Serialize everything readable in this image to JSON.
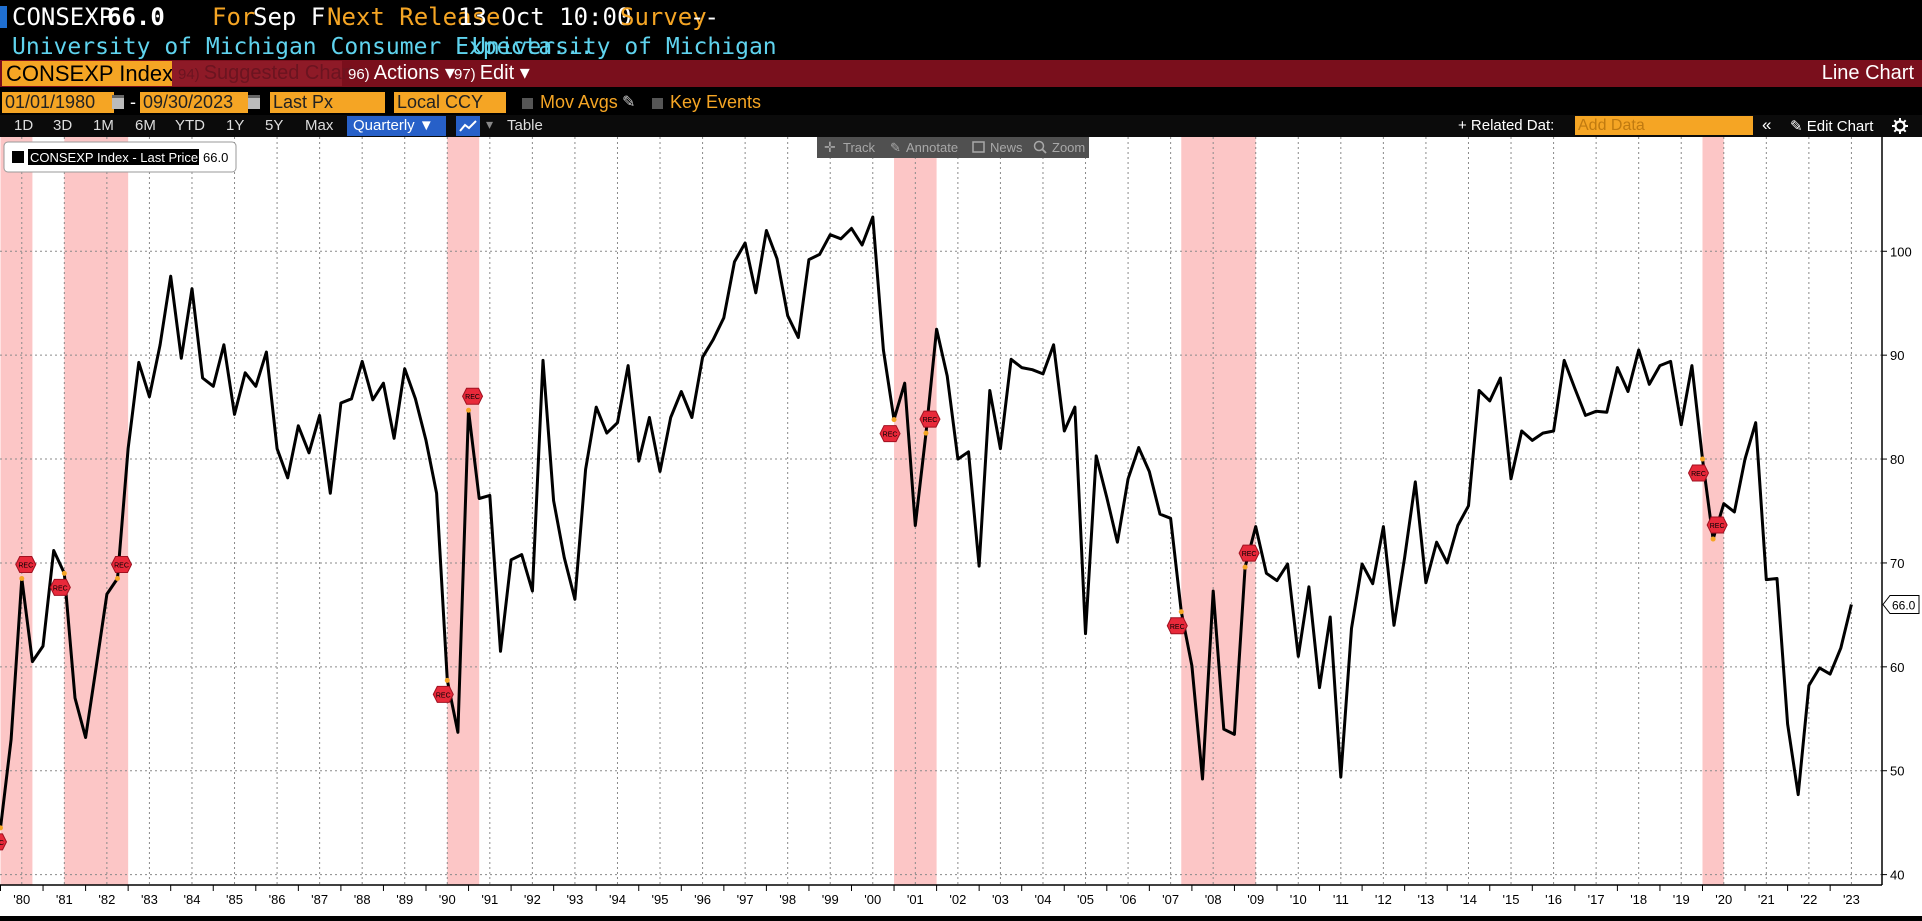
{
  "header": {
    "ticker": "CONSEXP",
    "value": "66.0",
    "for_label": "For",
    "for_value": "Sep F",
    "next_release_label": "Next Release",
    "next_release_value": "13 Oct 10:00",
    "survey_label": "Survey",
    "survey_value": "--",
    "description": "University of Michigan Consumer Expecta...",
    "source": "University of Michigan"
  },
  "menu": {
    "security": "CONSEXP Index",
    "suggested_num": "94)",
    "suggested": "Suggested Charts",
    "actions_num": "96)",
    "actions": "Actions ▾",
    "edit_num": "97)",
    "edit": "Edit ▾",
    "chart_type": "Line Chart"
  },
  "controls": {
    "start_date": "01/01/1980",
    "date_sep": "-",
    "end_date": "09/30/2023",
    "field": "Last Px",
    "currency": "Local CCY",
    "mov_avgs": "Mov Avgs",
    "key_events": "Key Events"
  },
  "toolbar": {
    "ranges": [
      "1D",
      "3D",
      "1M",
      "6M",
      "YTD",
      "1Y",
      "5Y",
      "Max"
    ],
    "frequency": "Quarterly ▼",
    "table": "Table",
    "related_data": "+ Related Dat:",
    "add_data_placeholder": "Add Data",
    "collapse": "«",
    "edit_chart": "✎ Edit Chart",
    "settings_icon": "gear-icon"
  },
  "chart_tools": [
    "Track",
    "Annotate",
    "News",
    "Zoom"
  ],
  "legend": {
    "label": "CONSEXP Index - Last Price",
    "value": "66.0"
  },
  "recession_label": "REC",
  "colors": {
    "accent": "#f5a524",
    "menu_bar": "#7a0f1c",
    "title_cyan": "#5fd3ee",
    "recession_shade": "#fcc6c6",
    "recession_marker": "#e8293a",
    "series": "#000000"
  },
  "chart_data": {
    "type": "line",
    "title": "",
    "xlabel": "",
    "ylabel": "",
    "frequency": "quarterly",
    "x_start": "1980 Q1",
    "x_end": "2023 Q3",
    "ylim": [
      39,
      111
    ],
    "yticks": [
      40,
      50,
      60,
      70,
      80,
      90,
      100
    ],
    "xtick_labels": [
      "'80",
      "'81",
      "'82",
      "'83",
      "'84",
      "'85",
      "'86",
      "'87",
      "'88",
      "'89",
      "'90",
      "'91",
      "'92",
      "'93",
      "'94",
      "'95",
      "'96",
      "'97",
      "'98",
      "'99",
      "'00",
      "'01",
      "'02",
      "'03",
      "'04",
      "'05",
      "'06",
      "'07",
      "'08",
      "'09",
      "'10",
      "'11",
      "'12",
      "'13",
      "'14",
      "'15",
      "'16",
      "'17",
      "'18",
      "'19",
      "'20",
      "'21",
      "'22",
      "'23"
    ],
    "grid": true,
    "last_value": 66.0,
    "recessions": [
      {
        "start": "1980 Q1",
        "end": "1980 Q3"
      },
      {
        "start": "1981 Q3",
        "end": "1982 Q4"
      },
      {
        "start": "1990 Q3",
        "end": "1991 Q1"
      },
      {
        "start": "2001 Q1",
        "end": "2001 Q4"
      },
      {
        "start": "2007 Q4",
        "end": "2009 Q2"
      },
      {
        "start": "2020 Q1",
        "end": "2020 Q2"
      }
    ],
    "series": [
      {
        "name": "CONSEXP Index - Last Price",
        "values": [
          44.5,
          53.0,
          68.5,
          60.5,
          62.0,
          71.2,
          69.0,
          57.0,
          53.2,
          60.0,
          67.0,
          68.5,
          81.0,
          89.3,
          86.0,
          91.0,
          97.6,
          89.7,
          96.4,
          87.8,
          87.0,
          91.0,
          84.3,
          88.3,
          87.0,
          90.3,
          81.0,
          78.2,
          83.2,
          80.6,
          84.2,
          76.7,
          85.4,
          85.8,
          89.4,
          85.7,
          87.3,
          82.0,
          88.7,
          85.8,
          81.8,
          76.7,
          58.7,
          53.7,
          84.7,
          76.2,
          76.5,
          61.5,
          70.3,
          70.8,
          67.3,
          89.5,
          76.0,
          70.5,
          66.5,
          79.0,
          85.0,
          82.5,
          83.5,
          89.0,
          79.8,
          84.0,
          78.8,
          84.0,
          86.5,
          84.0,
          89.8,
          91.5,
          93.6,
          99.0,
          100.8,
          96.0,
          102.0,
          99.3,
          93.8,
          91.7,
          99.2,
          99.7,
          101.6,
          101.2,
          102.2,
          100.6,
          103.3,
          90.5,
          83.8,
          87.3,
          73.6,
          82.5,
          92.5,
          88.0,
          80.0,
          80.7,
          69.7,
          86.6,
          81.0,
          89.6,
          88.8,
          88.6,
          88.2,
          91.0,
          82.7,
          85.0,
          63.2,
          80.3,
          76.3,
          72.0,
          78.1,
          81.1,
          78.8,
          74.7,
          74.3,
          65.3,
          60.1,
          49.2,
          67.3,
          54.0,
          53.5,
          69.6,
          73.5,
          69.0,
          68.3,
          69.9,
          61.0,
          67.7,
          58.0,
          64.8,
          49.4,
          63.7,
          69.9,
          68.0,
          73.5,
          64.0,
          70.5,
          77.8,
          68.1,
          72.0,
          70.0,
          73.6,
          75.5,
          86.6,
          85.6,
          87.8,
          78.1,
          82.7,
          81.8,
          82.5,
          82.7,
          89.5,
          86.8,
          84.2,
          84.6,
          84.5,
          88.8,
          86.5,
          90.5,
          87.2,
          89.0,
          89.4,
          83.3,
          89.0,
          80.0,
          72.3,
          75.7,
          74.9,
          80.0,
          83.5,
          68.4,
          68.5,
          54.5,
          47.7,
          58.2,
          59.9,
          59.3,
          61.8,
          66.0
        ]
      }
    ]
  }
}
